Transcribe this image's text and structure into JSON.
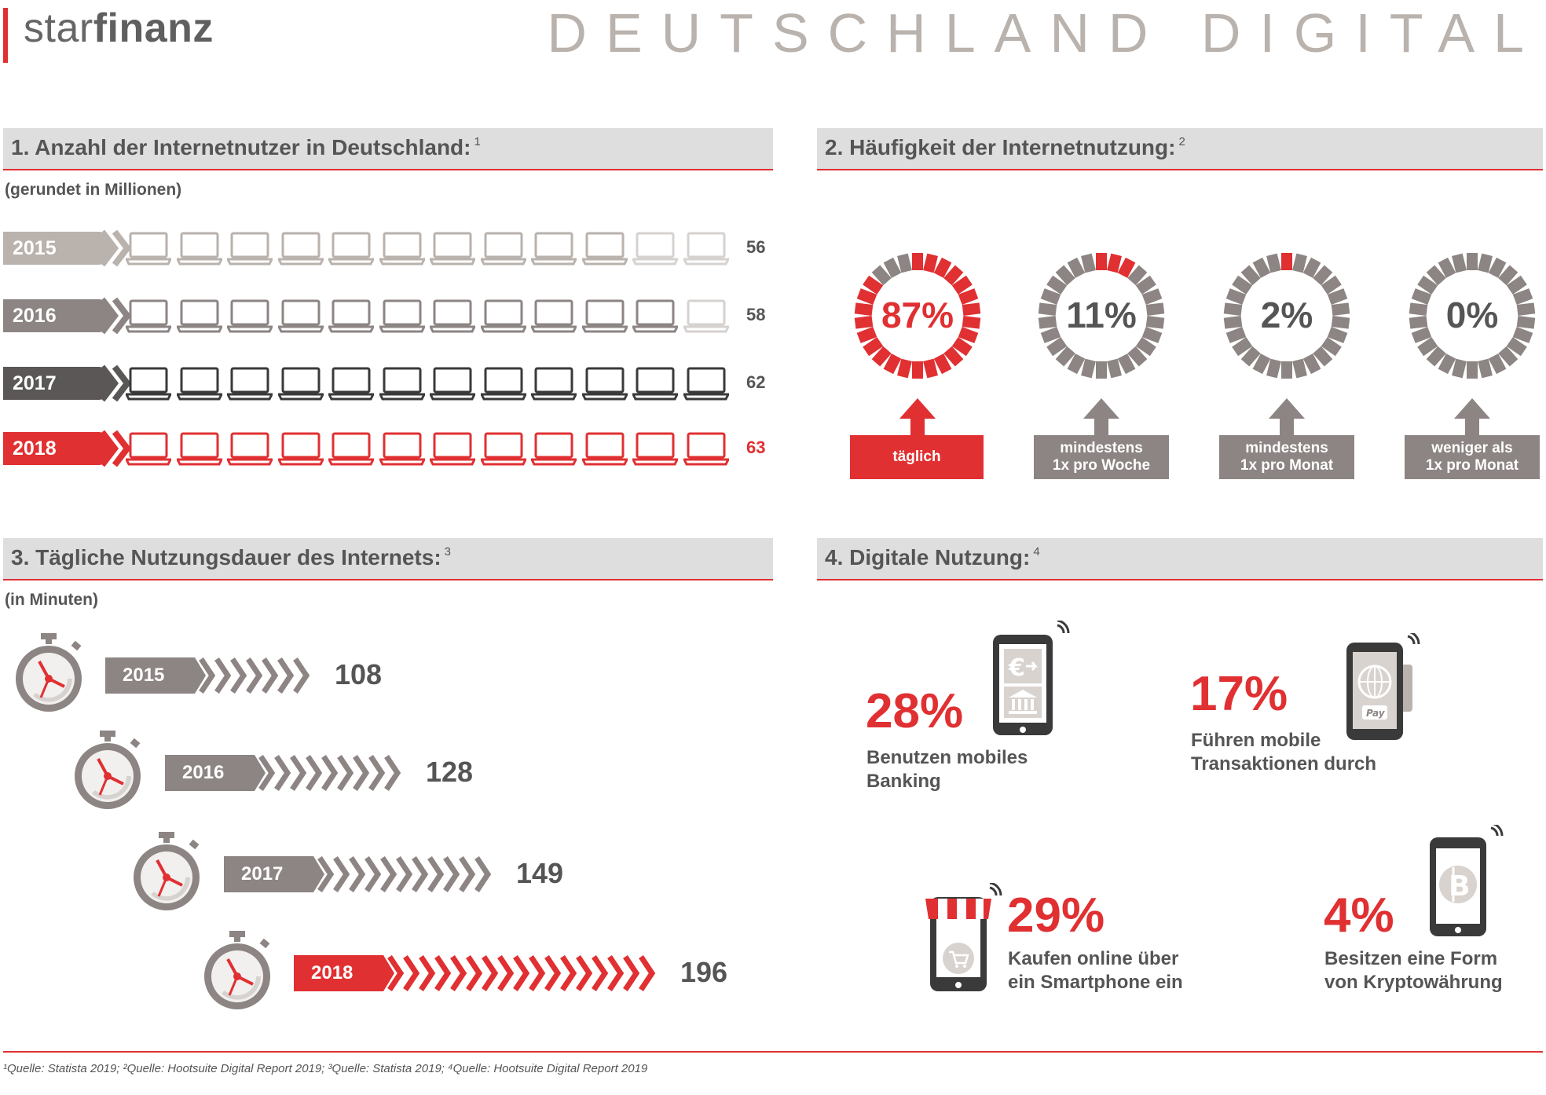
{
  "header": {
    "brand_light": "star",
    "brand_bold": "finanz",
    "title": "DEUTSCHLAND DIGITAL"
  },
  "sections": {
    "s1": {
      "title": "1. Anzahl der Internetnutzer in Deutschland:",
      "sup": "1",
      "unit": "(gerundet in Millionen)"
    },
    "s2": {
      "title": "2. Häufigkeit der Internetnutzung:",
      "sup": "2"
    },
    "s3": {
      "title": "3. Tägliche Nutzungsdauer des Internets:",
      "sup": "3",
      "unit": "(in Minuten)"
    },
    "s4": {
      "title": "4. Digitale Nutzung:",
      "sup": "4"
    }
  },
  "colors": {
    "red": "#e03032",
    "gray": "#8c8583",
    "lightgray": "#b9b2ad",
    "darkgray": "#5a5756",
    "pale": "#d6d2cf"
  },
  "chart_data": [
    {
      "type": "bar",
      "title": "1. Anzahl der Internetnutzer in Deutschland:",
      "unit": "(gerundet in Millionen)",
      "categories": [
        "2015",
        "2016",
        "2017",
        "2018"
      ],
      "values": [
        56,
        58,
        62,
        63
      ]
    },
    {
      "type": "pie",
      "title": "2. Häufigkeit der Internetnutzung:",
      "categories": [
        "täglich",
        "mindestens 1x pro Woche",
        "mindestens 1x pro Monat",
        "weniger als 1x pro Monat"
      ],
      "values": [
        87,
        11,
        2,
        0
      ],
      "labels": [
        "87%",
        "11%",
        "2%",
        "0%"
      ]
    },
    {
      "type": "bar",
      "title": "3. Tägliche Nutzungsdauer des Internets:",
      "unit": "(in Minuten)",
      "categories": [
        "2015",
        "2016",
        "2017",
        "2018"
      ],
      "values": [
        108,
        128,
        149,
        196
      ]
    },
    {
      "type": "table",
      "title": "4. Digitale Nutzung:",
      "items": [
        {
          "value": "28%",
          "text": "Benutzen mobiles Banking"
        },
        {
          "value": "17%",
          "text": "Führen mobile Transaktionen durch"
        },
        {
          "value": "29%",
          "text": "Kaufen online über ein Smartphone ein"
        },
        {
          "value": "4%",
          "text": "Besitzen eine Form von Kryptowährung"
        }
      ]
    }
  ],
  "s2_boxes": [
    {
      "line1": "täglich",
      "line2": ""
    },
    {
      "line1": "mindestens",
      "line2": "1x pro Woche"
    },
    {
      "line1": "mindestens",
      "line2": "1x pro Monat"
    },
    {
      "line1": "weniger als",
      "line2": "1x pro Monat"
    }
  ],
  "s4_items": [
    {
      "value": "28%",
      "line1": "Benutzen mobiles",
      "line2": "Banking",
      "icon": "mobile-banking-phone-icon"
    },
    {
      "value": "17%",
      "line1": "Führen mobile",
      "line2": "Transaktionen durch",
      "icon": "mobile-payment-phone-icon"
    },
    {
      "value": "29%",
      "line1": "Kaufen online über",
      "line2": "ein Smartphone ein",
      "icon": "shop-phone-icon"
    },
    {
      "value": "4%",
      "line1": "Besitzen eine Form",
      "line2": "von Kryptowährung",
      "icon": "bitcoin-phone-icon"
    }
  ],
  "footnote": "¹Quelle: Statista 2019; ²Quelle: Hootsuite Digital Report 2019; ³Quelle: Statista 2019; ⁴Quelle: Hootsuite Digital Report 2019"
}
